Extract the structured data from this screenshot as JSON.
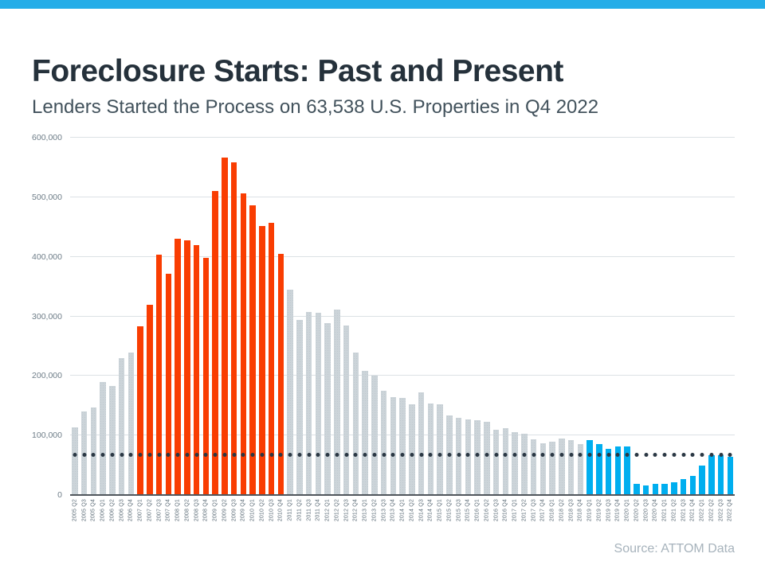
{
  "banner": {
    "color": "#24ade8"
  },
  "footer": {
    "source": "Source: ATTOM Data"
  },
  "chart_data": {
    "type": "bar",
    "title": "Foreclosure Starts: Past and Present",
    "subtitle": "Lenders Started the Process on 63,538 U.S. Properties in Q4 2022",
    "categories": [
      "2005 Q2",
      "2005 Q3",
      "2005 Q4",
      "2006 Q1",
      "2006 Q2",
      "2006 Q3",
      "2006 Q4",
      "2007 Q1",
      "2007 Q2",
      "2007 Q3",
      "2007 Q4",
      "2008 Q1",
      "2008 Q2",
      "2008 Q3",
      "2008 Q4",
      "2009 Q1",
      "2009 Q2",
      "2009 Q3",
      "2009 Q4",
      "2010 Q1",
      "2010 Q2",
      "2010 Q3",
      "2010 Q4",
      "2011 Q1",
      "2011 Q2",
      "2011 Q3",
      "2011 Q4",
      "2012 Q1",
      "2012 Q2",
      "2012 Q3",
      "2012 Q4",
      "2013 Q1",
      "2013 Q2",
      "2013 Q3",
      "2013 Q4",
      "2014 Q1",
      "2014 Q2",
      "2014 Q3",
      "2014 Q4",
      "2015 Q1",
      "2015 Q2",
      "2015 Q3",
      "2015 Q4",
      "2016 Q1",
      "2016 Q2",
      "2016 Q3",
      "2016 Q4",
      "2017 Q1",
      "2017 Q2",
      "2017 Q3",
      "2017 Q4",
      "2018 Q1",
      "2018 Q2",
      "2018 Q3",
      "2018 Q4",
      "2019 Q1",
      "2019 Q2",
      "2019 Q3",
      "2019 Q4",
      "2020 Q1",
      "2020 Q2",
      "2020 Q3",
      "2020 Q4",
      "2021 Q1",
      "2021 Q2",
      "2021 Q3",
      "2021 Q4",
      "2022 Q1",
      "2022 Q2",
      "2022 Q3",
      "2022 Q4"
    ],
    "values": [
      113000,
      141000,
      147000,
      190000,
      183000,
      230000,
      239000,
      283000,
      319000,
      404000,
      372000,
      430000,
      428000,
      419000,
      398000,
      510000,
      566000,
      559000,
      507000,
      487000,
      452000,
      457000,
      405000,
      345000,
      294000,
      308000,
      306000,
      288000,
      311000,
      284000,
      239000,
      209000,
      200000,
      175000,
      164000,
      163000,
      152000,
      173000,
      154000,
      153000,
      133000,
      130000,
      127000,
      126000,
      123000,
      110000,
      112000,
      106000,
      103000,
      94000,
      87000,
      90000,
      95000,
      92000,
      85000,
      92000,
      85000,
      78000,
      82000,
      81000,
      19000,
      16000,
      19000,
      19000,
      22000,
      27000,
      32000,
      50000,
      67000,
      67000,
      63538
    ],
    "segments": [
      {
        "name": "highlight-past",
        "from_index": 7,
        "to_index": 22,
        "color": "#f93d02"
      },
      {
        "name": "highlight-present",
        "from_index": 55,
        "to_index": 70,
        "color": "#00aeef"
      },
      {
        "name": "neutral",
        "color": "#ccd4d9"
      }
    ],
    "reference_line": {
      "value": 67000,
      "style": "dotted",
      "color": "#2b3844"
    },
    "ylim": [
      0,
      600000
    ],
    "yticks": [
      0,
      100000,
      200000,
      300000,
      400000,
      500000,
      600000
    ],
    "ytick_labels": [
      "0",
      "100,000",
      "200,000",
      "300,000",
      "400,000",
      "500,000",
      "600,000"
    ],
    "grid": true,
    "legend": false
  }
}
